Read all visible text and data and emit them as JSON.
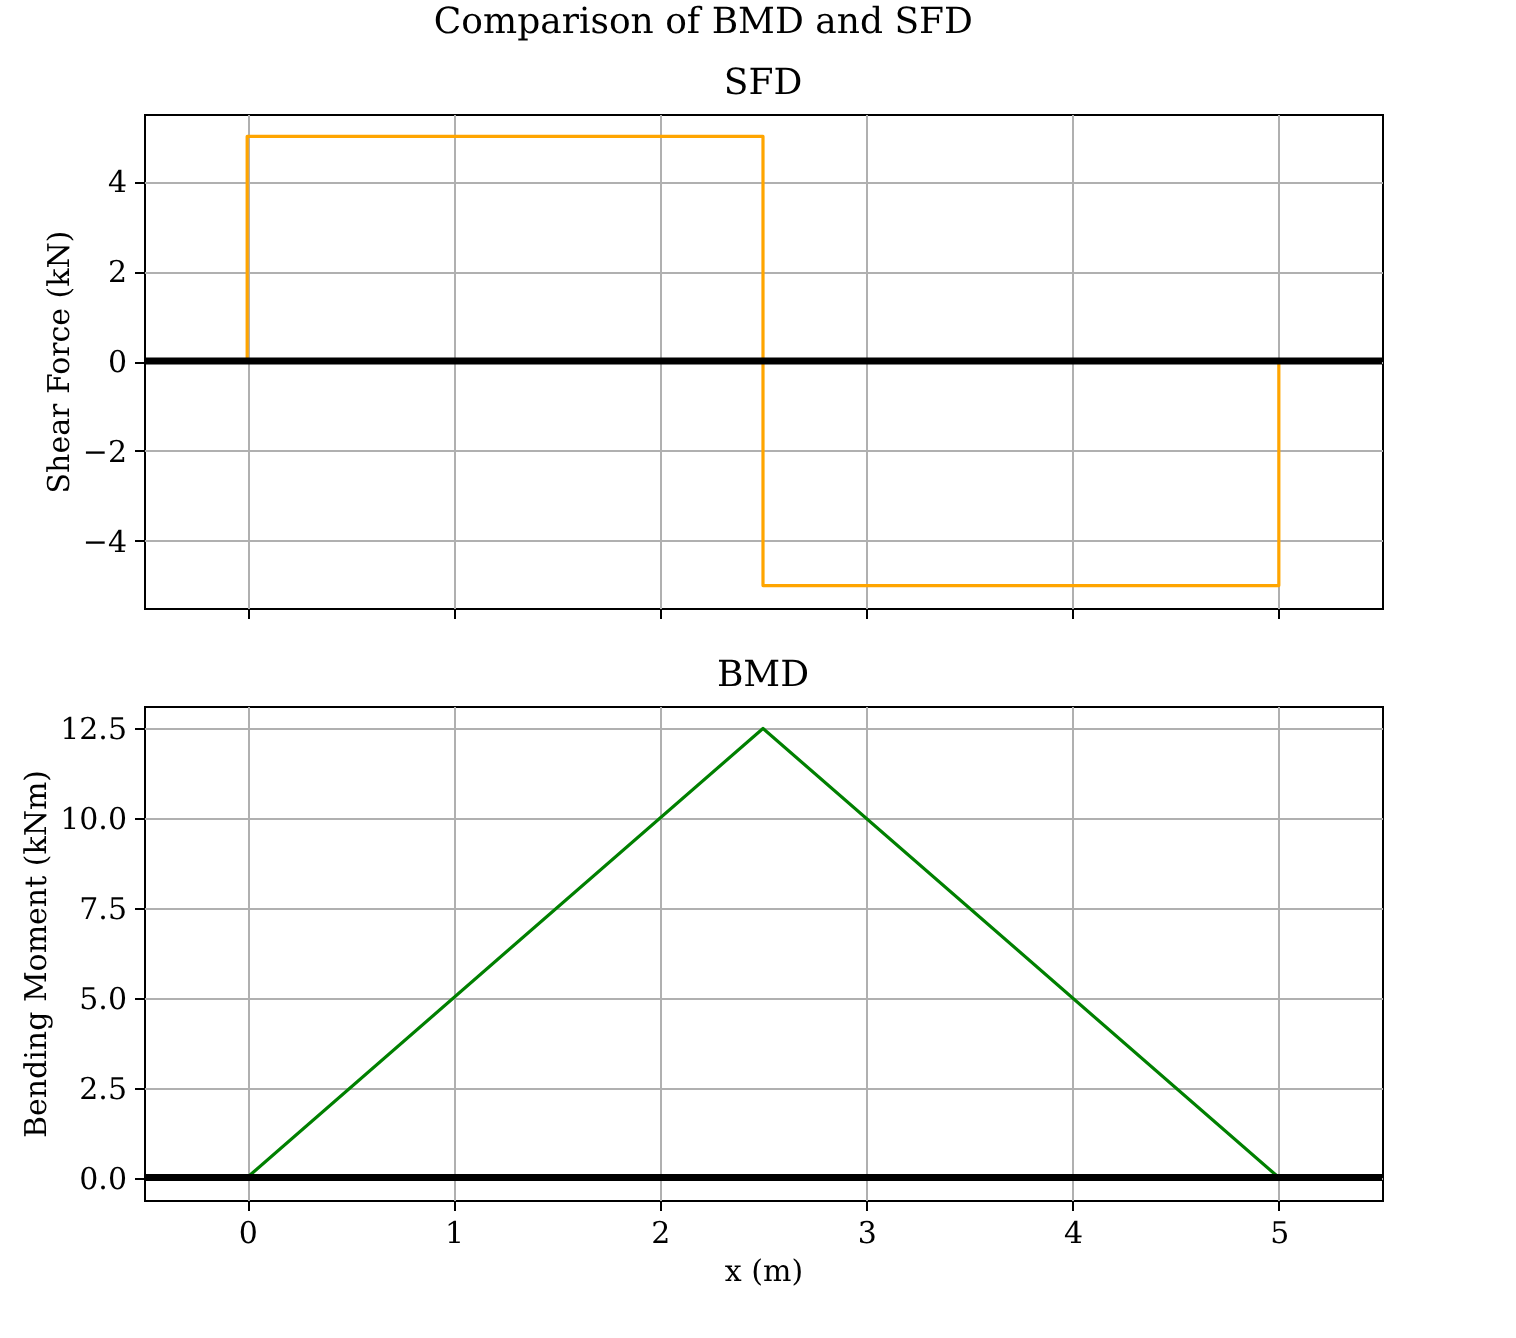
{
  "chart_data": [
    {
      "type": "line",
      "title": "SFD",
      "ylabel": "Shear Force (kN)",
      "annotations": [
        "Comparison of BMD and SFD"
      ],
      "xlim": [
        -0.5,
        5.5
      ],
      "xticks": [
        0,
        1,
        2,
        3,
        4,
        5
      ],
      "ylim": [
        -5.5,
        5.5
      ],
      "yticks": [
        {
          "value": -4,
          "label": "−4"
        },
        {
          "value": -2,
          "label": "−2"
        },
        0,
        2,
        4
      ],
      "grid": true,
      "tick_labels": "y",
      "line_style": "solid",
      "marker": "none",
      "series": [
        {
          "color": "#ffa500",
          "x": [
            0,
            0,
            2.5,
            2.5,
            5,
            5
          ],
          "values": [
            0,
            5,
            5,
            -5,
            -5,
            0
          ]
        }
      ],
      "ref_lines": [
        {
          "axis": "y",
          "value": 0,
          "color": "#000000",
          "line_style": "solid"
        }
      ]
    },
    {
      "type": "line",
      "title": "BMD",
      "xlabel": "x (m)",
      "ylabel": "Bending Moment (kNm)",
      "xlim": [
        -0.5,
        5.5
      ],
      "xticks": [
        0,
        1,
        2,
        3,
        4,
        5
      ],
      "ylim": [
        -0.625,
        13.125
      ],
      "yticks": [
        {
          "value": 0,
          "label": "0.0"
        },
        {
          "value": 2.5,
          "label": "2.5"
        },
        {
          "value": 5,
          "label": "5.0"
        },
        {
          "value": 7.5,
          "label": "7.5"
        },
        {
          "value": 10,
          "label": "10.0"
        },
        {
          "value": 12.5,
          "label": "12.5"
        }
      ],
      "grid": true,
      "line_style": "solid",
      "marker": "none",
      "series": [
        {
          "color": "#008000",
          "x": [
            0,
            2.5,
            5
          ],
          "values": [
            0,
            12.5,
            0
          ]
        }
      ],
      "ref_lines": [
        {
          "axis": "y",
          "value": 0,
          "color": "#000000",
          "line_style": "solid"
        }
      ]
    }
  ]
}
